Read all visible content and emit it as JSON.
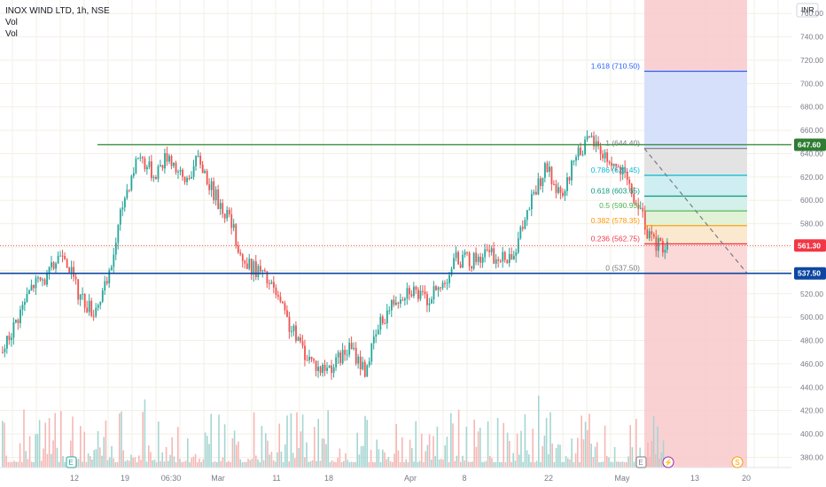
{
  "legend": {
    "symbol": "INOX WIND LTD, 1h, NSE",
    "vol1": "Vol",
    "vol2": "Vol"
  },
  "currency": "INR",
  "colors": {
    "up": "#26a69a",
    "down": "#ef5350",
    "vol_up": "#a5d6d1",
    "vol_down": "#f6b7b5",
    "grid": "#f3efe5",
    "axis_text": "#787b86"
  },
  "chart_data": {
    "type": "candlestick",
    "y_axis": {
      "ticks": [
        380,
        400,
        420,
        440,
        460,
        480,
        500,
        520,
        540,
        560,
        580,
        600,
        620,
        640,
        660,
        680,
        700,
        720,
        740,
        760
      ],
      "range": [
        372,
        770
      ]
    },
    "x_axis": {
      "labels": [
        "12",
        "19",
        "06:30",
        "Mar",
        "11",
        "18",
        "Apr",
        "8",
        "22",
        "May",
        "13",
        "20"
      ]
    },
    "price_path": [
      [
        0,
        470
      ],
      [
        1,
        500
      ],
      [
        2,
        528
      ],
      [
        3,
        534
      ],
      [
        4,
        560
      ],
      [
        5,
        520
      ],
      [
        6,
        505
      ],
      [
        7,
        530
      ],
      [
        8,
        600
      ],
      [
        9,
        640
      ],
      [
        10,
        622
      ],
      [
        11,
        640
      ],
      [
        12,
        615
      ],
      [
        13,
        636
      ],
      [
        14,
        605
      ],
      [
        15,
        585
      ],
      [
        16,
        545
      ],
      [
        17,
        540
      ],
      [
        18,
        522
      ],
      [
        19,
        492
      ],
      [
        20,
        470
      ],
      [
        21,
        455
      ],
      [
        22,
        460
      ],
      [
        23,
        474
      ],
      [
        24,
        455
      ],
      [
        25,
        495
      ],
      [
        26,
        516
      ],
      [
        27,
        526
      ],
      [
        28,
        514
      ],
      [
        29,
        525
      ],
      [
        30,
        550
      ],
      [
        31,
        548
      ],
      [
        32,
        555
      ],
      [
        33,
        548
      ],
      [
        34,
        560
      ],
      [
        35,
        600
      ],
      [
        36,
        628
      ],
      [
        37,
        598
      ],
      [
        38,
        642
      ],
      [
        39,
        652
      ],
      [
        40,
        636
      ],
      [
        41,
        624
      ],
      [
        42,
        596
      ],
      [
        43,
        564
      ],
      [
        44,
        560
      ]
    ],
    "resistance_line": {
      "price": 647.6,
      "label": "647.60",
      "color": "#388e3c"
    },
    "support_line": {
      "price": 537.5,
      "label": "537.50",
      "color": "#0d47a1"
    },
    "last_price": {
      "price": 561.3,
      "label": "561.30",
      "color": "#f23645"
    },
    "fib_levels": [
      {
        "ratio": "1.618",
        "price": 710.5,
        "label": "1.618 (710.50)",
        "color": "#2962ff"
      },
      {
        "ratio": "1",
        "price": 644.4,
        "label": "1 (644.40)",
        "color": "#787b86"
      },
      {
        "ratio": "0.786",
        "price": 621.4,
        "label": "0.786 (621.45)",
        "color": "#00bcd4"
      },
      {
        "ratio": "0.618",
        "price": 603.6,
        "label": "0.618 (603.65)",
        "color": "#089981"
      },
      {
        "ratio": "0.5",
        "price": 590.95,
        "label": "0.5 (590.95)",
        "color": "#4caf50"
      },
      {
        "ratio": "0.382",
        "price": 578.35,
        "label": "0.382 (578.35)",
        "color": "#ff9800"
      },
      {
        "ratio": "0.236",
        "price": 562.75,
        "label": "0.236 (562.75)",
        "color": "#f23645"
      },
      {
        "ratio": "0",
        "price": 537.5,
        "label": "0 (537.50)",
        "color": "#787b86"
      }
    ],
    "event_markers": [
      {
        "symbol": "E",
        "name": "earnings-marker"
      },
      {
        "symbol": "E",
        "name": "earnings-marker"
      },
      {
        "symbol": "⚡",
        "name": "split-marker"
      },
      {
        "symbol": "S",
        "name": "session-marker"
      }
    ]
  }
}
